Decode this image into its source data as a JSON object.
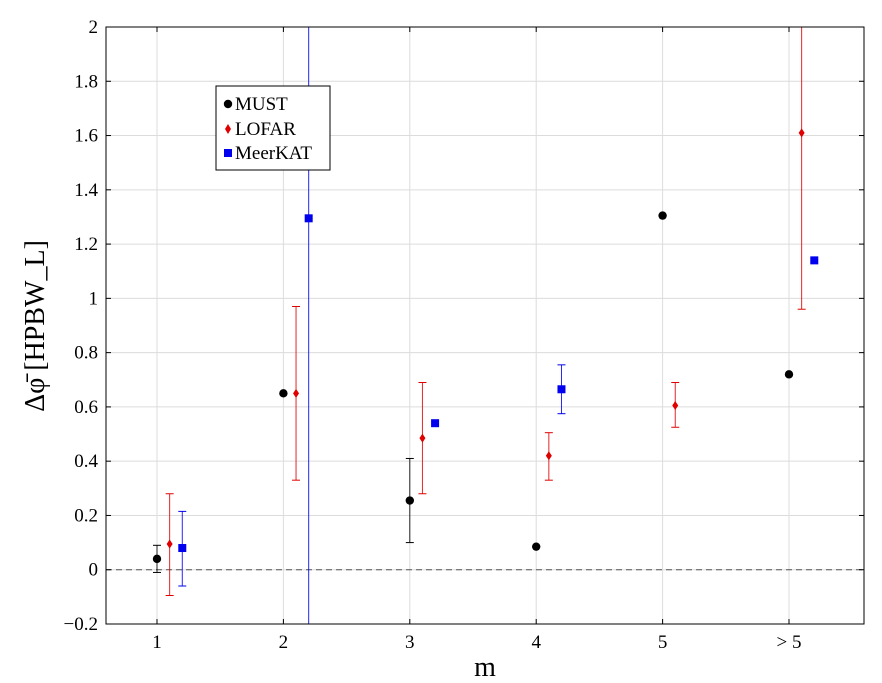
{
  "chart_data": {
    "type": "scatter",
    "title": "",
    "xlabel": "m",
    "ylabel": "Δφ̄ [HPBW_L]",
    "categories": [
      "1",
      "2",
      "3",
      "4",
      "5",
      "> 5"
    ],
    "ylim": [
      -0.2,
      2.0
    ],
    "yticks": [
      "−0.2",
      "0",
      "0.2",
      "0.4",
      "0.6",
      "0.8",
      "1",
      "1.2",
      "1.4",
      "1.6",
      "1.8",
      "2"
    ],
    "ytick_values": [
      -0.2,
      0,
      0.2,
      0.4,
      0.6,
      0.8,
      1.0,
      1.2,
      1.4,
      1.6,
      1.8,
      2.0
    ],
    "grid": true,
    "reference_line": {
      "y": 0,
      "style": "dashed",
      "color": "#555555"
    },
    "legend_position": "top-left",
    "series": [
      {
        "name": "MUST",
        "marker": "circle",
        "color": "#000000",
        "offset": 0.0,
        "values": [
          0.04,
          0.65,
          0.255,
          0.085,
          1.305,
          0.72
        ],
        "err_low": [
          -0.01,
          null,
          0.1,
          null,
          null,
          null
        ],
        "err_high": [
          0.09,
          null,
          0.41,
          null,
          null,
          null
        ]
      },
      {
        "name": "LOFAR",
        "marker": "diamond",
        "color": "#e00000",
        "offset": 0.1,
        "values": [
          0.095,
          0.65,
          0.485,
          0.42,
          0.605,
          1.61
        ],
        "err_low": [
          -0.095,
          0.33,
          0.28,
          0.33,
          0.525,
          0.96
        ],
        "err_high": [
          0.28,
          0.97,
          0.69,
          0.505,
          0.69,
          2.0
        ]
      },
      {
        "name": "MeerKAT",
        "marker": "square",
        "color": "#0000ee",
        "offset": 0.2,
        "values": [
          0.08,
          1.295,
          0.54,
          0.665,
          null,
          1.14
        ],
        "err_low": [
          -0.06,
          -0.2,
          null,
          0.575,
          null,
          null
        ],
        "err_high": [
          0.215,
          2.0,
          null,
          0.755,
          null,
          null
        ]
      }
    ]
  }
}
